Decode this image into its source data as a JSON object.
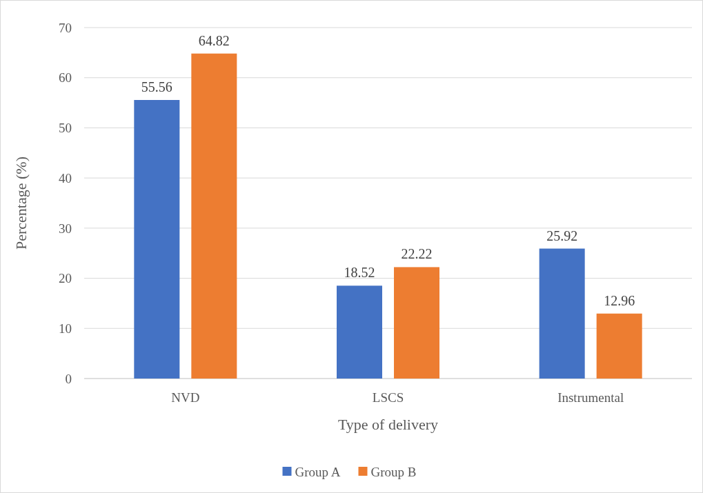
{
  "chart_data": {
    "type": "bar",
    "xlabel": "Type of delivery",
    "ylabel": "Percentage (%)",
    "categories": [
      "NVD",
      "LSCS",
      "Instrumental"
    ],
    "series": [
      {
        "name": "Group A",
        "color": "#4472c4",
        "values": [
          55.56,
          18.52,
          25.92
        ]
      },
      {
        "name": "Group B",
        "color": "#ed7d31",
        "values": [
          64.82,
          22.22,
          12.96
        ]
      }
    ],
    "ylim": [
      0,
      70
    ],
    "yticks": [
      0,
      10,
      20,
      30,
      40,
      50,
      60,
      70
    ],
    "grid": "y",
    "legend": "bottom",
    "data_labels": true
  }
}
